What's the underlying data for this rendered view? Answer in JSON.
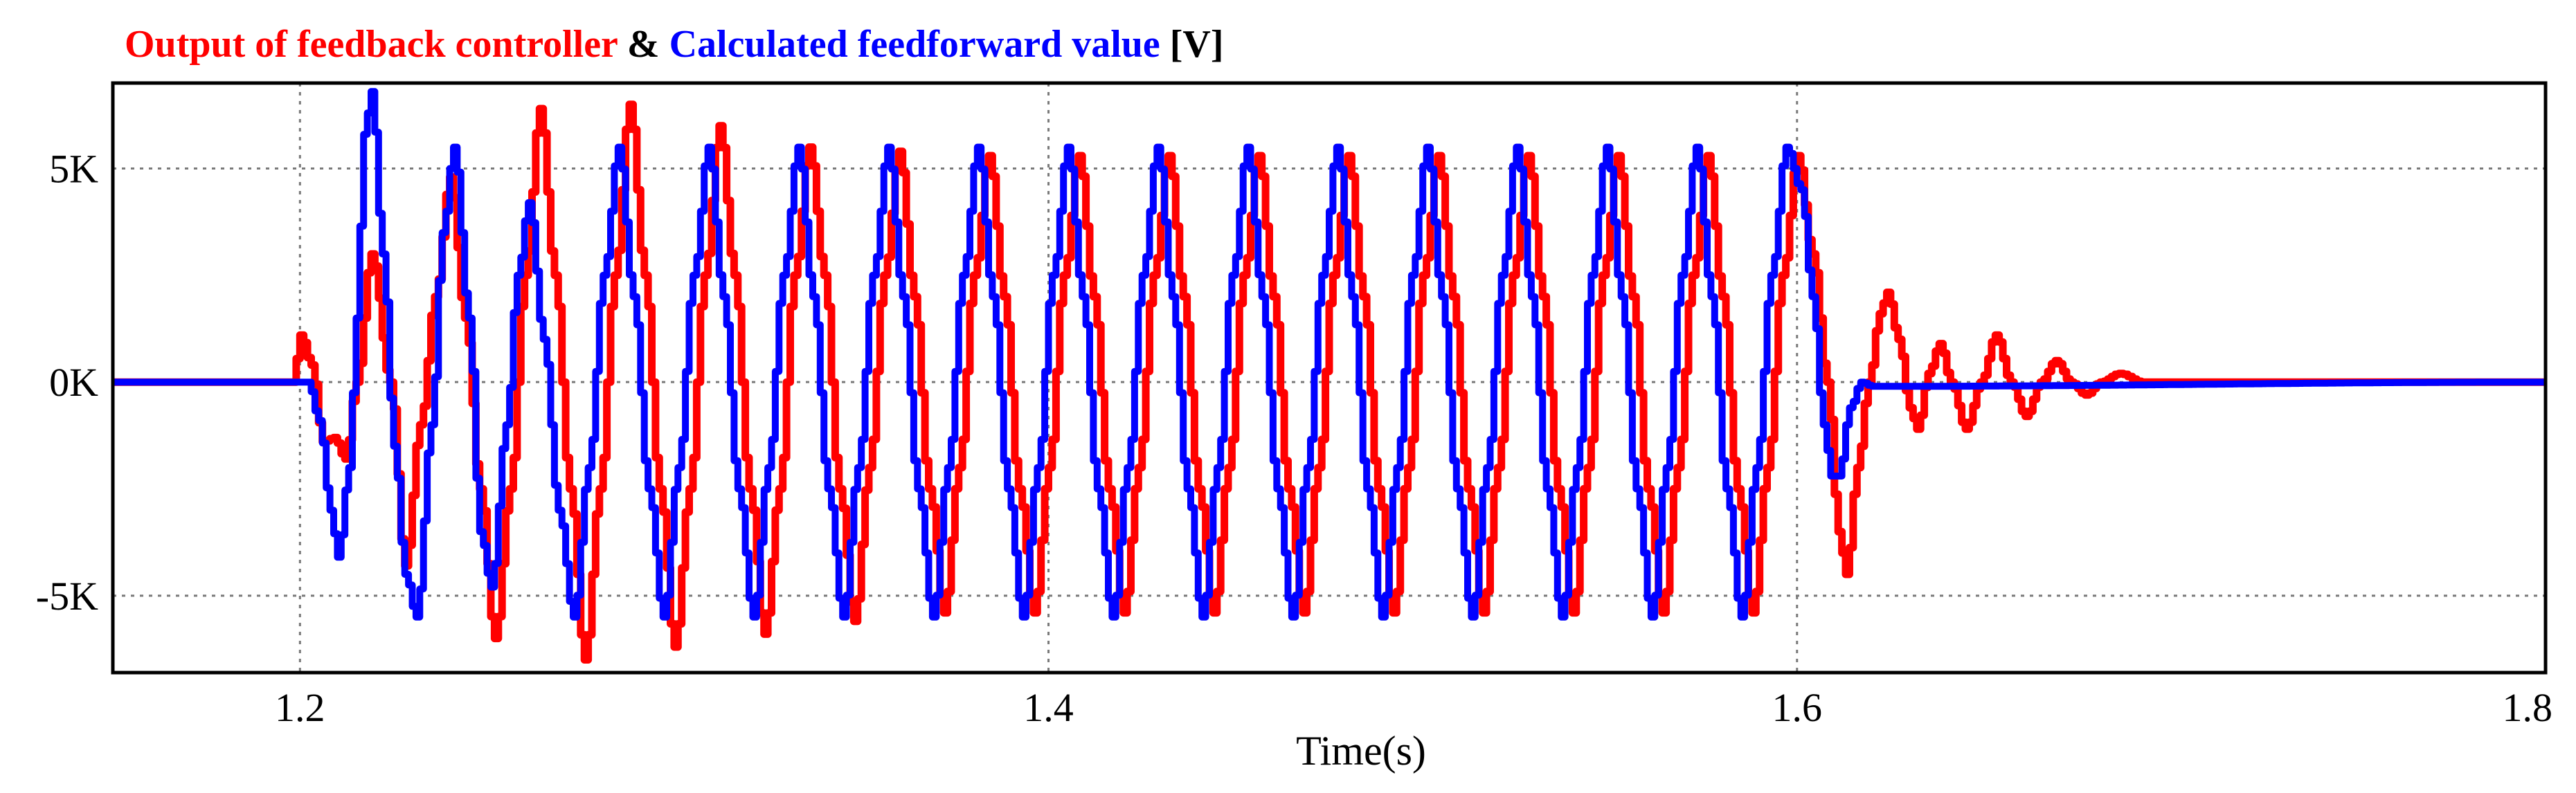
{
  "chart_data": {
    "type": "line",
    "title": {
      "part1": "Output of feedback controller",
      "sep": " & ",
      "part2": "Calculated feedforward value",
      "unit": " [V]"
    },
    "xlabel": "Time(s)",
    "ylabel": "",
    "xlim": [
      1.15,
      1.8
    ],
    "ylim": [
      -6800,
      7000
    ],
    "x_ticks": [
      {
        "value": 1.2,
        "label": "1.2"
      },
      {
        "value": 1.4,
        "label": "1.4"
      },
      {
        "value": 1.6,
        "label": "1.6"
      },
      {
        "value": 1.8,
        "label": "1.8"
      }
    ],
    "y_ticks": [
      {
        "value": 5000,
        "label": "5K"
      },
      {
        "value": 0,
        "label": "0K"
      },
      {
        "value": -5000,
        "label": "-5K"
      }
    ],
    "grid": true,
    "series": [
      {
        "name": "Output of feedback controller",
        "color": "#ff0000",
        "points": [
          [
            1.15,
            0
          ],
          [
            1.198,
            0
          ],
          [
            1.2,
            1100
          ],
          [
            1.203,
            400
          ],
          [
            1.206,
            -1400
          ],
          [
            1.209,
            -1300
          ],
          [
            1.212,
            -1800
          ],
          [
            1.215,
            0
          ],
          [
            1.219,
            3000
          ],
          [
            1.224,
            0
          ],
          [
            1.228,
            -4300
          ],
          [
            1.232,
            -1000
          ],
          [
            1.236,
            2000
          ],
          [
            1.24,
            4800
          ],
          [
            1.244,
            1500
          ],
          [
            1.248,
            -2500
          ],
          [
            1.252,
            -6000
          ],
          [
            1.256,
            -2500
          ],
          [
            1.26,
            2500
          ],
          [
            1.264,
            6400
          ],
          [
            1.268,
            2500
          ],
          [
            1.272,
            -2500
          ],
          [
            1.276,
            -6500
          ],
          [
            1.28,
            -2500
          ],
          [
            1.284,
            2500
          ],
          [
            1.288,
            6500
          ],
          [
            1.292,
            2500
          ],
          [
            1.296,
            -2500
          ],
          [
            1.3,
            -6200
          ],
          [
            1.304,
            -2500
          ],
          [
            1.308,
            2500
          ],
          [
            1.312,
            6000
          ],
          [
            1.316,
            2500
          ],
          [
            1.32,
            -2500
          ],
          [
            1.324,
            -5900
          ],
          [
            1.328,
            -2500
          ],
          [
            1.332,
            2500
          ],
          [
            1.336,
            5500
          ],
          [
            1.34,
            2500
          ],
          [
            1.344,
            -2500
          ],
          [
            1.348,
            -5600
          ],
          [
            1.352,
            -2000
          ],
          [
            1.356,
            2500
          ],
          [
            1.36,
            5400
          ],
          [
            1.364,
            2000
          ],
          [
            1.368,
            -2500
          ],
          [
            1.372,
            -5400
          ],
          [
            1.376,
            -2000
          ],
          [
            1.38,
            2500
          ],
          [
            1.384,
            5300
          ],
          [
            1.388,
            2000
          ],
          [
            1.392,
            -2500
          ],
          [
            1.396,
            -5400
          ],
          [
            1.4,
            -2000
          ],
          [
            1.404,
            2500
          ],
          [
            1.408,
            5300
          ],
          [
            1.412,
            2000
          ],
          [
            1.416,
            -2500
          ],
          [
            1.42,
            -5400
          ],
          [
            1.424,
            -2000
          ],
          [
            1.428,
            2500
          ],
          [
            1.432,
            5300
          ],
          [
            1.436,
            2000
          ],
          [
            1.44,
            -2500
          ],
          [
            1.444,
            -5400
          ],
          [
            1.448,
            -2000
          ],
          [
            1.452,
            2500
          ],
          [
            1.456,
            5300
          ],
          [
            1.46,
            2000
          ],
          [
            1.464,
            -2500
          ],
          [
            1.468,
            -5400
          ],
          [
            1.472,
            -2000
          ],
          [
            1.476,
            2500
          ],
          [
            1.48,
            5300
          ],
          [
            1.484,
            2000
          ],
          [
            1.488,
            -2500
          ],
          [
            1.492,
            -5400
          ],
          [
            1.496,
            -2000
          ],
          [
            1.5,
            2500
          ],
          [
            1.504,
            5300
          ],
          [
            1.508,
            2000
          ],
          [
            1.512,
            -2500
          ],
          [
            1.516,
            -5400
          ],
          [
            1.52,
            -2000
          ],
          [
            1.524,
            2500
          ],
          [
            1.528,
            5300
          ],
          [
            1.532,
            2000
          ],
          [
            1.536,
            -2500
          ],
          [
            1.54,
            -5400
          ],
          [
            1.544,
            -2000
          ],
          [
            1.548,
            2500
          ],
          [
            1.552,
            5300
          ],
          [
            1.556,
            2000
          ],
          [
            1.56,
            -2500
          ],
          [
            1.564,
            -5400
          ],
          [
            1.568,
            -2000
          ],
          [
            1.572,
            2500
          ],
          [
            1.576,
            5300
          ],
          [
            1.58,
            2000
          ],
          [
            1.584,
            -2500
          ],
          [
            1.588,
            -5400
          ],
          [
            1.592,
            -2000
          ],
          [
            1.596,
            2500
          ],
          [
            1.6,
            5300
          ],
          [
            1.604,
            3000
          ],
          [
            1.608,
            0
          ],
          [
            1.611,
            -3500
          ],
          [
            1.613,
            -4500
          ],
          [
            1.616,
            -2000
          ],
          [
            1.619,
            0
          ],
          [
            1.622,
            1600
          ],
          [
            1.624,
            2100
          ],
          [
            1.627,
            1000
          ],
          [
            1.63,
            -600
          ],
          [
            1.632,
            -1100
          ],
          [
            1.635,
            200
          ],
          [
            1.638,
            900
          ],
          [
            1.641,
            0
          ],
          [
            1.645,
            -1100
          ],
          [
            1.649,
            0
          ],
          [
            1.653,
            1100
          ],
          [
            1.657,
            0
          ],
          [
            1.661,
            -800
          ],
          [
            1.665,
            0
          ],
          [
            1.669,
            500
          ],
          [
            1.673,
            0
          ],
          [
            1.677,
            -300
          ],
          [
            1.681,
            0
          ],
          [
            1.686,
            200
          ],
          [
            1.692,
            0
          ],
          [
            1.7,
            0
          ],
          [
            1.8,
            0
          ]
        ]
      },
      {
        "name": "Calculated feedforward value",
        "color": "#0000ff",
        "points": [
          [
            1.15,
            0
          ],
          [
            1.202,
            0
          ],
          [
            1.205,
            -900
          ],
          [
            1.208,
            -3000
          ],
          [
            1.21,
            -4100
          ],
          [
            1.213,
            -2000
          ],
          [
            1.215,
            1500
          ],
          [
            1.217,
            5800
          ],
          [
            1.219,
            6800
          ],
          [
            1.222,
            3000
          ],
          [
            1.225,
            -1500
          ],
          [
            1.228,
            -4500
          ],
          [
            1.231,
            -5500
          ],
          [
            1.235,
            -1000
          ],
          [
            1.238,
            3500
          ],
          [
            1.241,
            5500
          ],
          [
            1.245,
            1500
          ],
          [
            1.248,
            -3500
          ],
          [
            1.251,
            -4800
          ],
          [
            1.255,
            -1000
          ],
          [
            1.258,
            2500
          ],
          [
            1.261,
            4200
          ],
          [
            1.265,
            1000
          ],
          [
            1.269,
            -3000
          ],
          [
            1.273,
            -5500
          ],
          [
            1.277,
            -2000
          ],
          [
            1.281,
            2500
          ],
          [
            1.285,
            5500
          ],
          [
            1.289,
            2000
          ],
          [
            1.293,
            -2500
          ],
          [
            1.297,
            -5500
          ],
          [
            1.301,
            -2000
          ],
          [
            1.305,
            2500
          ],
          [
            1.309,
            5500
          ],
          [
            1.313,
            2000
          ],
          [
            1.317,
            -2500
          ],
          [
            1.321,
            -5500
          ],
          [
            1.325,
            -2000
          ],
          [
            1.329,
            2500
          ],
          [
            1.333,
            5500
          ],
          [
            1.337,
            2000
          ],
          [
            1.341,
            -2500
          ],
          [
            1.345,
            -5500
          ],
          [
            1.349,
            -2000
          ],
          [
            1.353,
            2500
          ],
          [
            1.357,
            5500
          ],
          [
            1.361,
            2000
          ],
          [
            1.365,
            -2500
          ],
          [
            1.369,
            -5500
          ],
          [
            1.373,
            -2000
          ],
          [
            1.377,
            2500
          ],
          [
            1.381,
            5500
          ],
          [
            1.385,
            2000
          ],
          [
            1.389,
            -2500
          ],
          [
            1.393,
            -5500
          ],
          [
            1.397,
            -2000
          ],
          [
            1.401,
            2500
          ],
          [
            1.405,
            5500
          ],
          [
            1.409,
            2000
          ],
          [
            1.413,
            -2500
          ],
          [
            1.417,
            -5500
          ],
          [
            1.421,
            -2000
          ],
          [
            1.425,
            2500
          ],
          [
            1.429,
            5500
          ],
          [
            1.433,
            2000
          ],
          [
            1.437,
            -2500
          ],
          [
            1.441,
            -5500
          ],
          [
            1.445,
            -2000
          ],
          [
            1.449,
            2500
          ],
          [
            1.453,
            5500
          ],
          [
            1.457,
            2000
          ],
          [
            1.461,
            -2500
          ],
          [
            1.465,
            -5500
          ],
          [
            1.469,
            -2000
          ],
          [
            1.473,
            2500
          ],
          [
            1.477,
            5500
          ],
          [
            1.481,
            2000
          ],
          [
            1.485,
            -2500
          ],
          [
            1.489,
            -5500
          ],
          [
            1.493,
            -2000
          ],
          [
            1.497,
            2500
          ],
          [
            1.501,
            5500
          ],
          [
            1.505,
            2000
          ],
          [
            1.509,
            -2500
          ],
          [
            1.513,
            -5500
          ],
          [
            1.517,
            -2000
          ],
          [
            1.521,
            2500
          ],
          [
            1.525,
            5500
          ],
          [
            1.529,
            2000
          ],
          [
            1.533,
            -2500
          ],
          [
            1.537,
            -5500
          ],
          [
            1.541,
            -2000
          ],
          [
            1.545,
            2500
          ],
          [
            1.549,
            5500
          ],
          [
            1.553,
            2000
          ],
          [
            1.557,
            -2500
          ],
          [
            1.561,
            -5500
          ],
          [
            1.565,
            -2000
          ],
          [
            1.569,
            2500
          ],
          [
            1.573,
            5500
          ],
          [
            1.577,
            2000
          ],
          [
            1.581,
            -2500
          ],
          [
            1.585,
            -5500
          ],
          [
            1.589,
            -2000
          ],
          [
            1.593,
            2500
          ],
          [
            1.597,
            5500
          ],
          [
            1.601,
            4500
          ],
          [
            1.604,
            2000
          ],
          [
            1.607,
            -1000
          ],
          [
            1.609,
            -2200
          ],
          [
            1.611,
            -2200
          ],
          [
            1.614,
            -600
          ],
          [
            1.617,
            0
          ],
          [
            1.62,
            -100
          ],
          [
            1.8,
            0
          ]
        ]
      }
    ]
  }
}
